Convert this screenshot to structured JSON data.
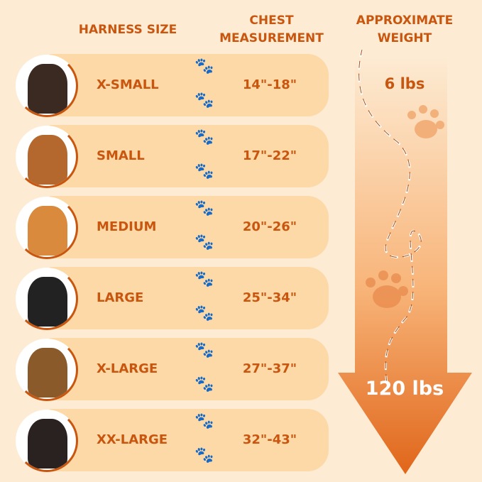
{
  "headers": {
    "size": "HARNESS SIZE",
    "chest": "CHEST MEASUREMENT",
    "weight": "APPROXIMATE WEIGHT"
  },
  "rows": [
    {
      "size": "X-SMALL",
      "chest": "14\"-18\"",
      "dog_color": "#3a2a22"
    },
    {
      "size": "SMALL",
      "chest": "17\"-22\"",
      "dog_color": "#b5682e"
    },
    {
      "size": "MEDIUM",
      "chest": "20\"-26\"",
      "dog_color": "#d98a3c"
    },
    {
      "size": "LARGE",
      "chest": "25\"-34\"",
      "dog_color": "#222222"
    },
    {
      "size": "X-LARGE",
      "chest": "27\"-37\"",
      "dog_color": "#8a5a2a"
    },
    {
      "size": "XX-LARGE",
      "chest": "32\"-43\"",
      "dog_color": "#2a2220"
    }
  ],
  "weight": {
    "min": "6 lbs",
    "max": "120 lbs"
  },
  "colors": {
    "background": "#fdebd3",
    "row": "#fdd9a8",
    "text": "#c9560f",
    "arrow_end": "#e0661a"
  },
  "icons": {
    "paw": "paw-print-icon",
    "arrow": "down-arrow"
  }
}
